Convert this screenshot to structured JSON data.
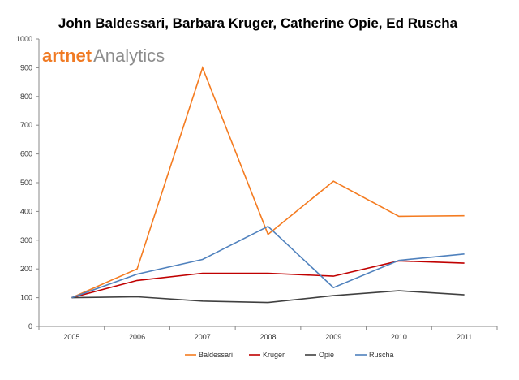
{
  "logo": {
    "brand": "artnet",
    "product": "Analytics",
    "brand_color": "#f07a23",
    "product_color": "#8c8c8c"
  },
  "chart_data": {
    "type": "line",
    "title": "John Baldessari, Barbara Kruger, Catherine Opie, Ed Ruscha",
    "xlabel": "",
    "ylabel": "",
    "categories": [
      "2005",
      "2006",
      "2007",
      "2008",
      "2009",
      "2010",
      "2011"
    ],
    "ylim": [
      0,
      1000
    ],
    "yticks": [
      0,
      100,
      200,
      300,
      400,
      500,
      600,
      700,
      800,
      900,
      1000
    ],
    "grid": false,
    "legend_position": "bottom",
    "series": [
      {
        "name": "Baldessari",
        "color": "#f47b20",
        "values": [
          100,
          200,
          900,
          320,
          505,
          383,
          385
        ]
      },
      {
        "name": "Kruger",
        "color": "#c00000",
        "values": [
          100,
          160,
          185,
          185,
          175,
          228,
          220
        ]
      },
      {
        "name": "Opie",
        "color": "#404040",
        "values": [
          100,
          103,
          88,
          83,
          107,
          124,
          110
        ]
      },
      {
        "name": "Ruscha",
        "color": "#4f81bd",
        "values": [
          100,
          182,
          233,
          348,
          135,
          230,
          252
        ]
      }
    ]
  }
}
